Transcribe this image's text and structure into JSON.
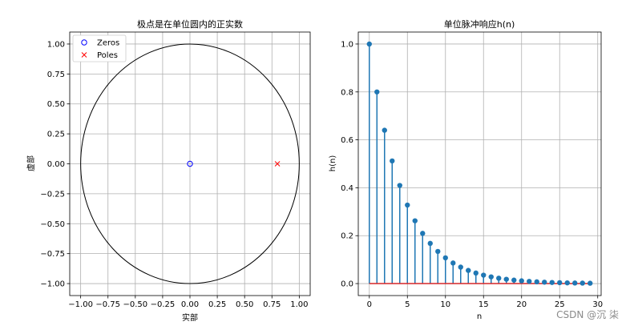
{
  "chart_data": [
    {
      "type": "scatter",
      "title": "极点是在单位圆内的正实数",
      "xlabel": "实部",
      "ylabel": "虚部",
      "xlim": [
        -1.1,
        1.1
      ],
      "ylim": [
        -1.1,
        1.1
      ],
      "xticks": [
        -1.0,
        -0.75,
        -0.5,
        -0.25,
        0.0,
        0.25,
        0.5,
        0.75,
        1.0
      ],
      "xtick_labels": [
        "−1.00",
        "−0.75",
        "−0.50",
        "−0.25",
        "0.00",
        "0.25",
        "0.50",
        "0.75",
        "1.00"
      ],
      "yticks": [
        -1.0,
        -0.75,
        -0.5,
        -0.25,
        0.0,
        0.25,
        0.5,
        0.75,
        1.0
      ],
      "ytick_labels": [
        "−1.00",
        "−0.75",
        "−0.50",
        "−0.25",
        "0.00",
        "0.25",
        "0.50",
        "0.75",
        "1.00"
      ],
      "grid": true,
      "legend_position": "top-left",
      "unit_circle": {
        "radius": 1.0,
        "color": "#000000"
      },
      "series": [
        {
          "name": "Zeros",
          "marker": "o",
          "color": "#0000ff",
          "x": [
            0.0
          ],
          "y": [
            0.0
          ]
        },
        {
          "name": "Poles",
          "marker": "x",
          "color": "#ff0000",
          "x": [
            0.8
          ],
          "y": [
            0.0
          ]
        }
      ]
    },
    {
      "type": "stem",
      "title": "单位脉冲响应h(n)",
      "xlabel": "n",
      "ylabel": "h(n)",
      "xlim": [
        -1.45,
        30.45
      ],
      "ylim": [
        -0.05,
        1.05
      ],
      "xticks": [
        0,
        5,
        10,
        15,
        20,
        25,
        30
      ],
      "xtick_labels": [
        "0",
        "5",
        "10",
        "15",
        "20",
        "25",
        "30"
      ],
      "yticks": [
        0.0,
        0.2,
        0.4,
        0.6,
        0.8,
        1.0
      ],
      "ytick_labels": [
        "0.0",
        "0.2",
        "0.4",
        "0.6",
        "0.8",
        "1.0"
      ],
      "grid": true,
      "stem_color": "#1f77b4",
      "baseline_color": "#d62728",
      "x": [
        0,
        1,
        2,
        3,
        4,
        5,
        6,
        7,
        8,
        9,
        10,
        11,
        12,
        13,
        14,
        15,
        16,
        17,
        18,
        19,
        20,
        21,
        22,
        23,
        24,
        25,
        26,
        27,
        28,
        29
      ],
      "values": [
        1.0,
        0.8,
        0.64,
        0.512,
        0.4096,
        0.3277,
        0.2621,
        0.2097,
        0.1678,
        0.1342,
        0.1074,
        0.0859,
        0.0687,
        0.055,
        0.044,
        0.0352,
        0.0281,
        0.0225,
        0.018,
        0.0144,
        0.0115,
        0.0092,
        0.0074,
        0.0059,
        0.0047,
        0.0038,
        0.003,
        0.0024,
        0.0019,
        0.0015
      ]
    }
  ],
  "watermark": "CSDN @沉  柒"
}
